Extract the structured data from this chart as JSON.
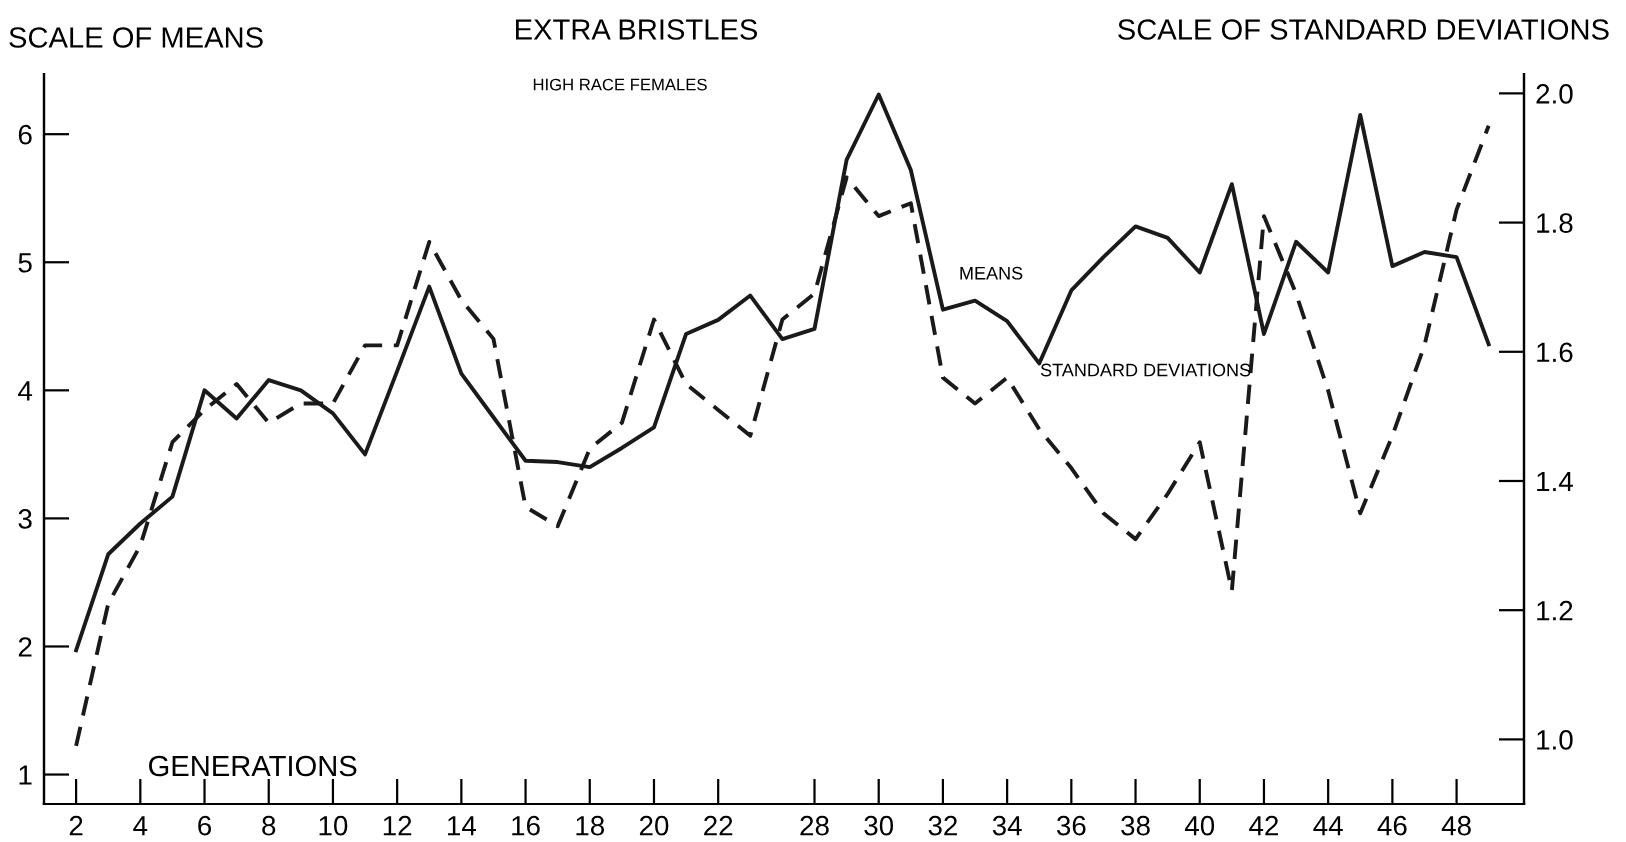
{
  "chart_data": {
    "type": "line",
    "title": "EXTRA BRISTLES",
    "subtitle": "HIGH RACE FEMALES",
    "xlabel": "GENERATIONS",
    "ylabel": "SCALE OF MEANS",
    "y2label": "SCALE OF STANDARD DEVIATIONS",
    "categories": [
      "2",
      null,
      "4",
      null,
      "6",
      null,
      "8",
      null,
      "10",
      null,
      "12",
      null,
      "14",
      null,
      "16",
      null,
      "18",
      null,
      "20",
      null,
      "22",
      null,
      null,
      "28",
      null,
      "30",
      null,
      "32",
      null,
      "34",
      null,
      "36",
      null,
      "38",
      null,
      "40",
      null,
      "42",
      null,
      "44",
      null,
      "46",
      null,
      "48",
      null
    ],
    "series": [
      {
        "name": "MEANS",
        "color": "#1a1a1a",
        "line_style": "solid",
        "values": [
          1.97,
          2.72,
          2.96,
          3.17,
          4.0,
          3.78,
          4.08,
          4.0,
          3.82,
          3.5,
          4.15,
          4.81,
          4.13,
          3.79,
          3.45,
          3.44,
          3.4,
          3.55,
          3.71,
          4.44,
          4.55,
          4.74,
          4.4,
          4.48,
          5.8,
          6.31,
          5.72,
          4.63,
          4.7,
          4.54,
          4.21,
          4.78,
          5.04,
          5.28,
          5.19,
          4.92,
          5.61,
          4.44,
          5.16,
          4.92,
          6.15,
          4.97,
          5.08,
          5.04,
          4.36
        ]
      },
      {
        "name": "STANDARD DEVIATIONS",
        "color": "#1a1a1a",
        "line_style": "dashed",
        "axis": "y2",
        "values": [
          0.99,
          1.21,
          1.3,
          1.46,
          1.51,
          1.55,
          1.49,
          1.52,
          1.52,
          1.61,
          1.61,
          1.77,
          1.68,
          1.62,
          1.36,
          1.33,
          1.45,
          1.49,
          1.65,
          1.55,
          1.51,
          1.47,
          1.65,
          1.69,
          1.87,
          1.81,
          1.83,
          1.56,
          1.52,
          1.56,
          1.48,
          1.42,
          1.35,
          1.31,
          1.38,
          1.46,
          1.23,
          1.81,
          1.69,
          1.54,
          1.35,
          1.47,
          1.61,
          1.82,
          1.95
        ]
      }
    ],
    "ylim": [
      0.77,
      6.47
    ],
    "yticks": [
      1,
      2,
      3,
      4,
      5,
      6
    ],
    "y2lim": [
      0.9,
      2.03
    ],
    "y2ticks": [
      {
        "value": 1.0,
        "label": "1.0"
      },
      {
        "value": 1.2,
        "label": "1.2"
      },
      {
        "value": 1.4,
        "label": "1.4"
      },
      {
        "value": 1.6,
        "label": "1.6"
      },
      {
        "value": 1.8,
        "label": "1.8"
      },
      {
        "value": 2.0,
        "label": "2.0"
      }
    ],
    "marker": "none",
    "grid": false,
    "legend": false
  }
}
